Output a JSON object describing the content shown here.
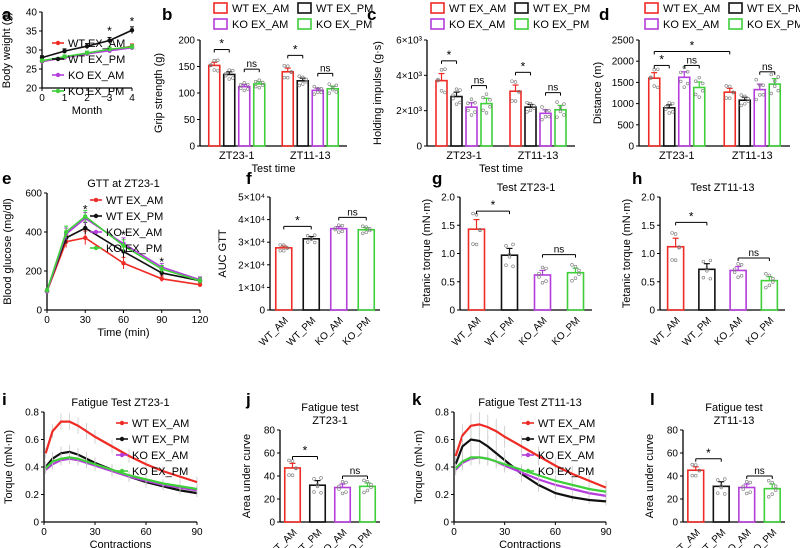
{
  "colors": {
    "WT_AM": "#ee2b24",
    "WT_PM": "#111111",
    "KO_AM": "#b43ddc",
    "KO_PM": "#3fcf3a",
    "axis": "#000000",
    "marker": "#777777"
  },
  "chart_data": [
    {
      "id": "a",
      "type": "line",
      "letter": "a",
      "title": "",
      "xlabel": "Month",
      "ylabel": "Body weight (g)",
      "xlim": [
        0,
        4
      ],
      "ylim": [
        20,
        40
      ],
      "xticks": [
        "0",
        "1",
        "2",
        "3",
        "4"
      ],
      "yticks": [
        "20",
        "25",
        "30",
        "35",
        "40"
      ],
      "x": [
        0,
        1,
        2,
        3,
        4
      ],
      "series": [
        {
          "name": "WT EX_AM",
          "key": "WT_AM",
          "values": [
            27.0,
            28.0,
            29.0,
            30.0,
            31.0
          ],
          "err": [
            0.4,
            0.5,
            0.5,
            0.6,
            0.6
          ]
        },
        {
          "name": "WT EX_PM",
          "key": "WT_PM",
          "values": [
            28.0,
            29.7,
            31.0,
            32.5,
            35.2
          ],
          "err": [
            0.5,
            0.6,
            0.7,
            0.8,
            0.9
          ]
        },
        {
          "name": "KO EX_AM",
          "key": "KO_AM",
          "values": [
            27.0,
            28.0,
            29.0,
            29.8,
            30.6
          ],
          "err": [
            0.4,
            0.5,
            0.5,
            0.6,
            0.6
          ]
        },
        {
          "name": "KO EX_PM",
          "key": "KO_PM",
          "values": [
            27.2,
            28.2,
            29.2,
            30.2,
            30.8
          ],
          "err": [
            0.4,
            0.5,
            0.5,
            0.6,
            0.6
          ]
        }
      ],
      "annotations": [
        {
          "text": "*",
          "x": 3,
          "y": 35.0
        },
        {
          "text": "*",
          "x": 4,
          "y": 37.5
        }
      ]
    },
    {
      "id": "b",
      "type": "bar",
      "letter": "b",
      "title": "",
      "xlabel": "Test time",
      "ylabel": "Grip strength (g)",
      "ylim": [
        0,
        200
      ],
      "yticks": [
        "0",
        "50",
        "100",
        "150",
        "200"
      ],
      "groups": [
        "ZT23-1",
        "ZT11-13"
      ],
      "series": [
        {
          "name": "WT EX_AM",
          "key": "WT_AM",
          "values": [
            152,
            140
          ],
          "err": [
            6,
            7
          ]
        },
        {
          "name": "WT EX_PM",
          "key": "WT_PM",
          "values": [
            135,
            123
          ],
          "err": [
            5,
            5
          ]
        },
        {
          "name": "KO EX_AM",
          "key": "KO_AM",
          "values": [
            112,
            105
          ],
          "err": [
            4,
            4
          ]
        },
        {
          "name": "KO EX_PM",
          "key": "KO_PM",
          "values": [
            117,
            108
          ],
          "err": [
            4,
            5
          ]
        }
      ],
      "brackets": [
        {
          "group": 0,
          "from": 0,
          "to": 1,
          "text": "*"
        },
        {
          "group": 0,
          "from": 2,
          "to": 3,
          "text": "ns"
        },
        {
          "group": 1,
          "from": 0,
          "to": 1,
          "text": "*"
        },
        {
          "group": 1,
          "from": 2,
          "to": 3,
          "text": "ns"
        }
      ]
    },
    {
      "id": "c",
      "type": "bar",
      "letter": "c",
      "title": "",
      "xlabel": "Test time",
      "ylabel": "Holding impulse (g·s)",
      "ylim": [
        0,
        6000
      ],
      "yticks": [
        "0",
        "2×10³",
        "4×10³",
        "6×10³"
      ],
      "groups": [
        "ZT23-1",
        "ZT11-13"
      ],
      "series": [
        {
          "name": "WT EX_AM",
          "key": "WT_AM",
          "values": [
            3700,
            3100
          ],
          "err": [
            400,
            350
          ]
        },
        {
          "name": "WT EX_PM",
          "key": "WT_PM",
          "values": [
            2800,
            2200
          ],
          "err": [
            250,
            150
          ]
        },
        {
          "name": "KO EX_AM",
          "key": "KO_AM",
          "values": [
            2200,
            1850
          ],
          "err": [
            250,
            200
          ]
        },
        {
          "name": "KO EX_PM",
          "key": "KO_PM",
          "values": [
            2400,
            2050
          ],
          "err": [
            300,
            250
          ]
        }
      ],
      "brackets": [
        {
          "group": 0,
          "from": 0,
          "to": 1,
          "text": "*"
        },
        {
          "group": 0,
          "from": 2,
          "to": 3,
          "text": "ns"
        },
        {
          "group": 1,
          "from": 0,
          "to": 1,
          "text": "*"
        },
        {
          "group": 1,
          "from": 2,
          "to": 3,
          "text": "ns"
        }
      ]
    },
    {
      "id": "d",
      "type": "bar",
      "letter": "d",
      "title": "",
      "xlabel": "",
      "ylabel": "Distance (m)",
      "ylim": [
        0,
        2500
      ],
      "yticks": [
        "0",
        "500",
        "1000",
        "1500",
        "2000",
        "2500"
      ],
      "groups": [
        "ZT23-1",
        "ZT11-13"
      ],
      "series": [
        {
          "name": "WT EX_AM",
          "key": "WT_AM",
          "values": [
            1600,
            1270
          ],
          "err": [
            130,
            90
          ]
        },
        {
          "name": "WT EX_PM",
          "key": "WT_PM",
          "values": [
            900,
            1080
          ],
          "err": [
            70,
            70
          ]
        },
        {
          "name": "KO EX_AM",
          "key": "KO_AM",
          "values": [
            1620,
            1330
          ],
          "err": [
            130,
            130
          ]
        },
        {
          "name": "KO EX_PM",
          "key": "KO_PM",
          "values": [
            1380,
            1460
          ],
          "err": [
            130,
            130
          ]
        }
      ],
      "brackets": [
        {
          "group": 0,
          "from": 0,
          "to": 1,
          "text": "*",
          "y": 1900
        },
        {
          "group": 0,
          "from": 2,
          "to": 3,
          "text": "ns",
          "y": 1900
        },
        {
          "group": 1,
          "from": 2,
          "to": 3,
          "text": "ns",
          "y": 1750
        }
      ],
      "long_bracket": {
        "text": "*",
        "y": 2230,
        "from": [
          0,
          0
        ],
        "to": [
          1,
          0
        ]
      }
    },
    {
      "id": "e",
      "type": "line",
      "letter": "e",
      "title": "GTT at ZT23-1",
      "xlabel": "Time (min)",
      "ylabel": "Blood glucose (mg/dl)",
      "xlim": [
        0,
        120
      ],
      "ylim": [
        0,
        600
      ],
      "xticks": [
        "0",
        "30",
        "60",
        "90",
        "120"
      ],
      "yticks": [
        "0",
        "200",
        "400",
        "600"
      ],
      "x": [
        0,
        15,
        30,
        60,
        90,
        120
      ],
      "series": [
        {
          "name": "WT EX_AM",
          "key": "WT_AM",
          "values": [
            95,
            350,
            370,
            240,
            160,
            130
          ],
          "err": [
            8,
            30,
            35,
            30,
            15,
            12
          ]
        },
        {
          "name": "WT EX_PM",
          "key": "WT_PM",
          "values": [
            100,
            370,
            420,
            300,
            190,
            150
          ],
          "err": [
            8,
            30,
            30,
            30,
            18,
            15
          ]
        },
        {
          "name": "KO EX_AM",
          "key": "KO_AM",
          "values": [
            95,
            390,
            470,
            340,
            220,
            155
          ],
          "err": [
            8,
            30,
            30,
            30,
            18,
            15
          ]
        },
        {
          "name": "KO EX_PM",
          "key": "KO_PM",
          "values": [
            100,
            400,
            480,
            330,
            210,
            150
          ],
          "err": [
            8,
            30,
            30,
            30,
            18,
            15
          ]
        }
      ],
      "annotations": [
        {
          "text": "*",
          "x": 30,
          "y": 515
        },
        {
          "text": "*",
          "x": 60,
          "y": 385
        },
        {
          "text": "*",
          "x": 90,
          "y": 245
        }
      ]
    },
    {
      "id": "f",
      "type": "bar",
      "letter": "f",
      "title": "",
      "xlabel": "",
      "ylabel": "AUC GTT",
      "ylim": [
        0,
        50000
      ],
      "yticks": [
        "0",
        "1×10⁴",
        "2×10⁴",
        "3×10⁴",
        "4×10⁴",
        "5×10⁴"
      ],
      "categories": [
        "WT_AM",
        "WT_PM",
        "KO_AM",
        "KO_PM"
      ],
      "values": [
        27500,
        31500,
        36000,
        35500
      ],
      "err": [
        800,
        1000,
        900,
        900
      ],
      "brackets": [
        {
          "from": 0,
          "to": 1,
          "text": "*",
          "y": 37000
        },
        {
          "from": 2,
          "to": 3,
          "text": "ns",
          "y": 41000
        }
      ]
    },
    {
      "id": "g",
      "type": "bar",
      "letter": "g",
      "title": "Test ZT23-1",
      "xlabel": "",
      "ylabel": "Tetanic torque (mN·m)",
      "ylim": [
        0,
        2.0
      ],
      "yticks": [
        "0",
        "0.5",
        "1.0",
        "1.5",
        "2.0"
      ],
      "categories": [
        "WT_AM",
        "WT_PM",
        "KO_AM",
        "KO_PM"
      ],
      "values": [
        1.43,
        0.97,
        0.62,
        0.66
      ],
      "err": [
        0.17,
        0.12,
        0.08,
        0.08
      ],
      "brackets": [
        {
          "from": 0,
          "to": 1,
          "text": "*",
          "y": 1.75
        },
        {
          "from": 2,
          "to": 3,
          "text": "ns",
          "y": 0.98
        }
      ]
    },
    {
      "id": "h",
      "type": "bar",
      "letter": "h",
      "title": "Test ZT11-13",
      "xlabel": "",
      "ylabel": "Tetanic torque (mN·m)",
      "ylim": [
        0,
        2.0
      ],
      "yticks": [
        "0",
        "0.5",
        "1.0",
        "1.5",
        "2.0"
      ],
      "categories": [
        "WT_AM",
        "WT_PM",
        "KO_AM",
        "KO_PM"
      ],
      "values": [
        1.12,
        0.72,
        0.7,
        0.52
      ],
      "err": [
        0.15,
        0.1,
        0.07,
        0.07
      ],
      "brackets": [
        {
          "from": 0,
          "to": 1,
          "text": "*",
          "y": 1.55
        },
        {
          "from": 2,
          "to": 3,
          "text": "ns",
          "y": 0.92
        }
      ]
    },
    {
      "id": "i",
      "type": "line",
      "letter": "i",
      "title": "Fatigue Test ZT23-1",
      "xlabel": "Contractions",
      "ylabel": "Torque (mN·m)",
      "xlim": [
        0,
        90
      ],
      "ylim": [
        0,
        0.8
      ],
      "xticks": [
        "0",
        "30",
        "60",
        "90"
      ],
      "yticks": [
        "0",
        "0.2",
        "0.4",
        "0.6",
        "0.8"
      ],
      "x": [
        1,
        5,
        10,
        15,
        20,
        25,
        30,
        40,
        50,
        60,
        70,
        80,
        90
      ],
      "series": [
        {
          "name": "WT EX_AM",
          "key": "WT_AM",
          "values": [
            0.5,
            0.66,
            0.73,
            0.73,
            0.7,
            0.66,
            0.62,
            0.55,
            0.48,
            0.42,
            0.37,
            0.33,
            0.29
          ],
          "err": [
            0.04,
            0.05,
            0.06,
            0.06,
            0.06,
            0.06,
            0.05,
            0.05,
            0.05,
            0.04,
            0.04,
            0.04,
            0.04
          ]
        },
        {
          "name": "WT EX_PM",
          "key": "WT_PM",
          "values": [
            0.4,
            0.46,
            0.5,
            0.51,
            0.49,
            0.46,
            0.43,
            0.38,
            0.33,
            0.29,
            0.26,
            0.23,
            0.21
          ],
          "err": [
            0.04,
            0.05,
            0.05,
            0.05,
            0.05,
            0.05,
            0.04,
            0.04,
            0.04,
            0.04,
            0.03,
            0.03,
            0.03
          ]
        },
        {
          "name": "KO EX_AM",
          "key": "KO_AM",
          "values": [
            0.38,
            0.42,
            0.45,
            0.46,
            0.45,
            0.43,
            0.41,
            0.37,
            0.33,
            0.3,
            0.27,
            0.25,
            0.23
          ],
          "err": [
            0.03,
            0.04,
            0.04,
            0.04,
            0.04,
            0.04,
            0.04,
            0.04,
            0.03,
            0.03,
            0.03,
            0.03,
            0.03
          ]
        },
        {
          "name": "KO EX_PM",
          "key": "KO_PM",
          "values": [
            0.39,
            0.44,
            0.46,
            0.47,
            0.46,
            0.44,
            0.42,
            0.38,
            0.34,
            0.31,
            0.28,
            0.26,
            0.24
          ],
          "err": [
            0.03,
            0.04,
            0.04,
            0.04,
            0.04,
            0.04,
            0.04,
            0.04,
            0.03,
            0.03,
            0.03,
            0.03,
            0.03
          ]
        }
      ]
    },
    {
      "id": "j",
      "type": "bar",
      "letter": "j",
      "title": "Fatigue test\nZT23-1",
      "xlabel": "",
      "ylabel": "Area under curve",
      "ylim": [
        0,
        80
      ],
      "yticks": [
        "0",
        "20",
        "40",
        "60",
        "80"
      ],
      "categories": [
        "WT_AM",
        "WT_PM",
        "KO_AM",
        "KO_PM"
      ],
      "values": [
        47,
        32,
        30,
        31
      ],
      "err": [
        4,
        4,
        3,
        3
      ],
      "brackets": [
        {
          "from": 0,
          "to": 1,
          "text": "*",
          "y": 57
        },
        {
          "from": 2,
          "to": 3,
          "text": "ns",
          "y": 40
        }
      ]
    },
    {
      "id": "k",
      "type": "line",
      "letter": "k",
      "title": "Fatigue Test ZT11-13",
      "xlabel": "Contractions",
      "ylabel": "Torque (mN·m)",
      "xlim": [
        0,
        90
      ],
      "ylim": [
        0,
        0.8
      ],
      "xticks": [
        "0",
        "30",
        "60",
        "90"
      ],
      "yticks": [
        "0",
        "0.2",
        "0.4",
        "0.6",
        "0.8"
      ],
      "x": [
        1,
        5,
        10,
        15,
        20,
        25,
        30,
        40,
        50,
        60,
        70,
        80,
        90
      ],
      "series": [
        {
          "name": "WT EX_AM",
          "key": "WT_AM",
          "values": [
            0.48,
            0.63,
            0.7,
            0.71,
            0.69,
            0.66,
            0.62,
            0.55,
            0.48,
            0.41,
            0.35,
            0.3,
            0.25
          ],
          "err": [
            0.05,
            0.08,
            0.09,
            0.09,
            0.09,
            0.09,
            0.08,
            0.08,
            0.07,
            0.06,
            0.06,
            0.05,
            0.05
          ]
        },
        {
          "name": "WT EX_PM",
          "key": "WT_PM",
          "values": [
            0.42,
            0.55,
            0.6,
            0.59,
            0.55,
            0.5,
            0.45,
            0.35,
            0.27,
            0.21,
            0.18,
            0.16,
            0.15
          ],
          "err": [
            0.05,
            0.07,
            0.08,
            0.08,
            0.08,
            0.07,
            0.07,
            0.06,
            0.05,
            0.04,
            0.03,
            0.03,
            0.03
          ]
        },
        {
          "name": "KO EX_AM",
          "key": "KO_AM",
          "values": [
            0.38,
            0.43,
            0.46,
            0.47,
            0.46,
            0.44,
            0.41,
            0.36,
            0.31,
            0.27,
            0.24,
            0.21,
            0.19
          ],
          "err": [
            0.04,
            0.05,
            0.05,
            0.05,
            0.05,
            0.05,
            0.05,
            0.04,
            0.04,
            0.04,
            0.03,
            0.03,
            0.03
          ]
        },
        {
          "name": "KO EX_PM",
          "key": "KO_PM",
          "values": [
            0.39,
            0.44,
            0.47,
            0.47,
            0.46,
            0.44,
            0.42,
            0.38,
            0.34,
            0.3,
            0.27,
            0.24,
            0.22
          ],
          "err": [
            0.04,
            0.05,
            0.05,
            0.05,
            0.05,
            0.05,
            0.05,
            0.04,
            0.04,
            0.04,
            0.03,
            0.03,
            0.03
          ]
        }
      ]
    },
    {
      "id": "l",
      "type": "bar",
      "letter": "l",
      "title": "Fatigue test\nZT11-13",
      "xlabel": "",
      "ylabel": "Area under curve",
      "ylim": [
        0,
        80
      ],
      "yticks": [
        "0",
        "20",
        "40",
        "60",
        "80"
      ],
      "categories": [
        "WT_AM",
        "WT_PM",
        "KO_AM",
        "KO_PM"
      ],
      "values": [
        45,
        31,
        30,
        29
      ],
      "err": [
        3,
        4,
        3,
        4
      ],
      "brackets": [
        {
          "from": 0,
          "to": 1,
          "text": "*",
          "y": 55
        },
        {
          "from": 2,
          "to": 3,
          "text": "ns",
          "y": 40
        }
      ]
    }
  ]
}
